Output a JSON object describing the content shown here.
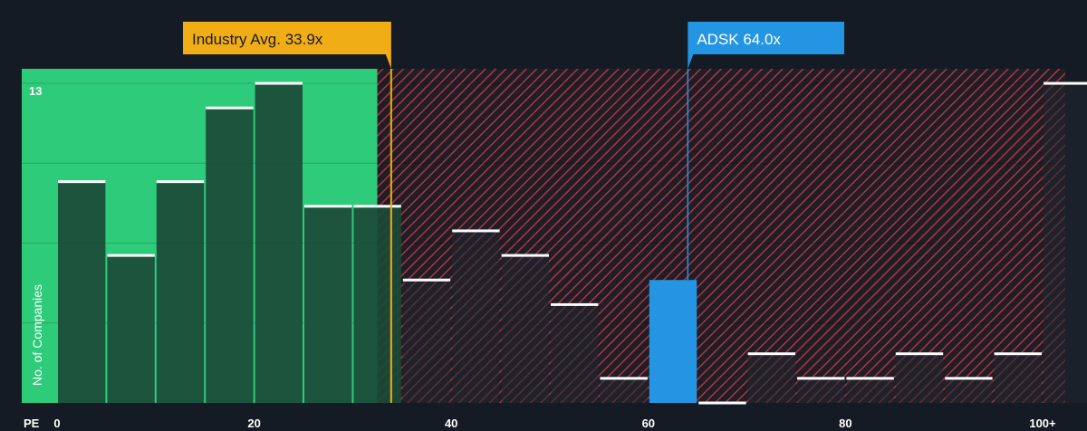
{
  "chart_data": {
    "type": "bar",
    "xlabel": "PE",
    "ylabel": "No. of Companies",
    "y_max_label": "13",
    "ylim": [
      0,
      13
    ],
    "x_ticks": [
      "0",
      "20",
      "40",
      "60",
      "80",
      "100+"
    ],
    "bin_width": 5,
    "values": [
      9,
      6,
      9,
      12,
      13,
      8,
      8,
      5,
      7,
      6,
      4,
      1,
      5,
      0,
      2,
      1,
      1,
      2,
      1,
      2,
      13
    ],
    "highlight_bin": 12,
    "industry_avg": {
      "label": "Industry Avg. 33.9x",
      "value": 33.9
    },
    "company": {
      "label": "ADSK 64.0x",
      "value": 64.0
    },
    "gridlines": true
  },
  "colors": {
    "background": "#151b24",
    "fair_zone": "#2ecc7a",
    "fair_bar": "#1b4a37",
    "over_bar": "#1f2630",
    "hatch": "#b8303a",
    "average": "#f0ad16",
    "company": "#2495e3",
    "bar_top": "#ffffff",
    "axis_text": "#ffffff"
  }
}
